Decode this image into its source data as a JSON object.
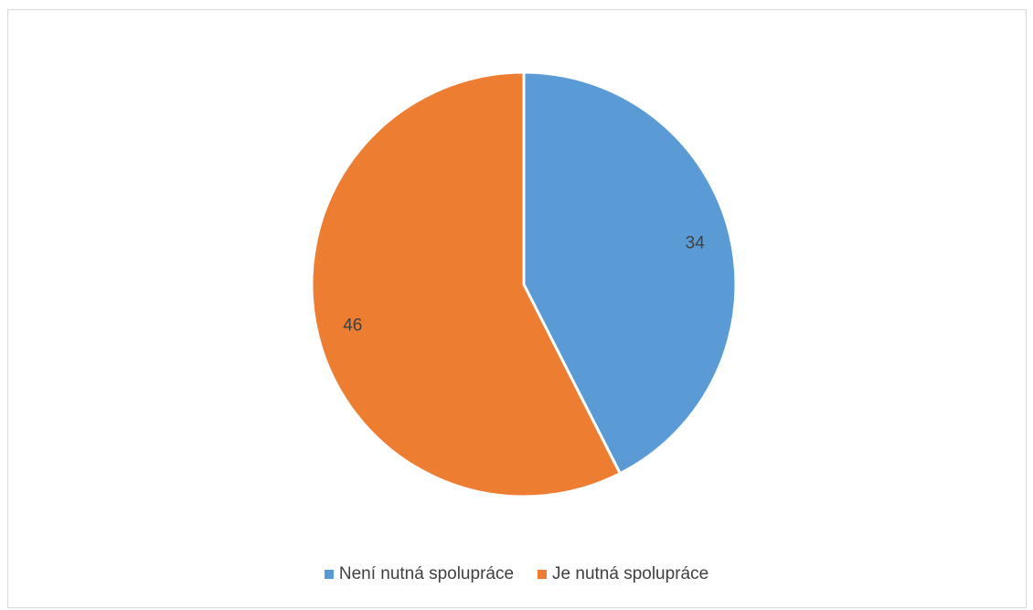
{
  "chart_data": {
    "type": "pie",
    "categories": [
      "Není nutná spolupráce",
      "Je nutná spolupráce"
    ],
    "values": [
      34,
      46
    ],
    "colors": [
      "#5b9bd5",
      "#ed7d31"
    ],
    "data_labels": [
      "34",
      "46"
    ],
    "title": "",
    "legend_position": "bottom"
  },
  "legend": {
    "items": [
      {
        "label": "Není nutná spolupráce",
        "color": "#5b9bd5"
      },
      {
        "label": "Je nutná spolupráce",
        "color": "#ed7d31"
      }
    ]
  }
}
